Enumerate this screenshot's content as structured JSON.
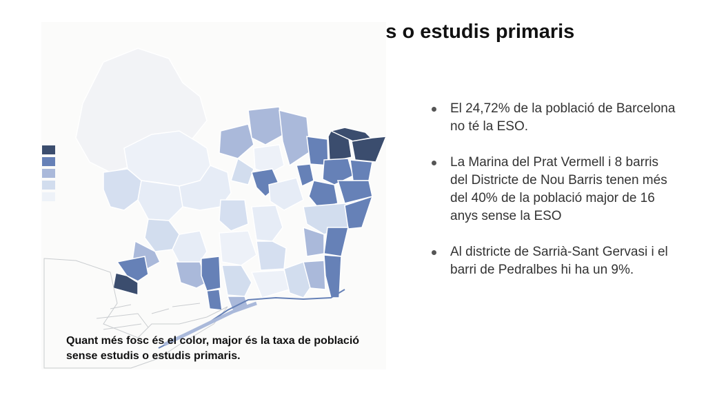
{
  "title": "Població sense estudis o estudis primaris",
  "map": {
    "legend_colors": [
      "#3b4d6e",
      "#6681b7",
      "#aab9da",
      "#d2ddee",
      "#eef2f8"
    ],
    "note": "Quant més fosc és el color, major és la taxa de població sense estudis o estudis primaris."
  },
  "bullets": [
    "El 24,72% de la població de Barcelona no té la ESO.",
    "La Marina del Prat Vermell i 8 barris del Districte de Nou Barris tenen més del 40% de la població major de 16 anys sense la ESO",
    "Al districte de Sarrià-Sant Gervasi i el barri de Pedralbes hi ha un 9%."
  ]
}
